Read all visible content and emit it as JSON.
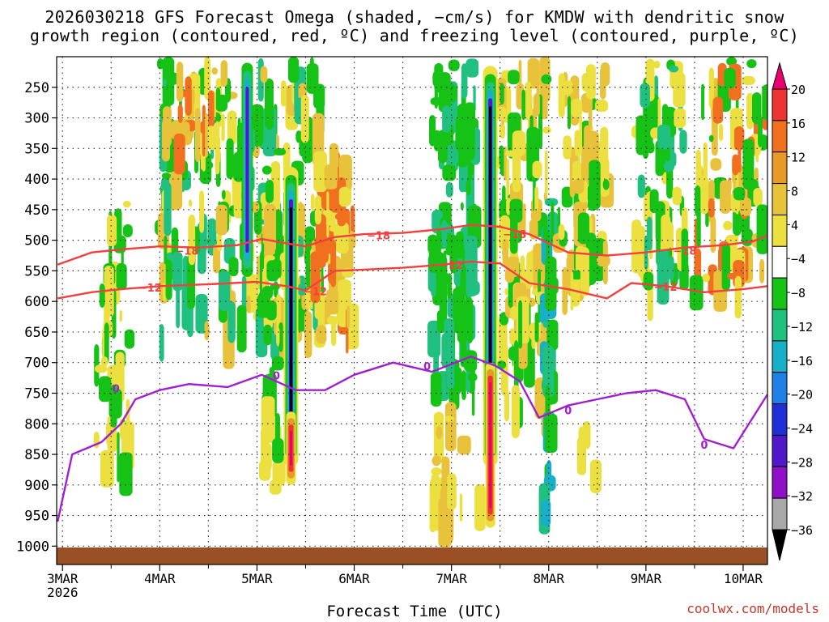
{
  "title_line1": "2026030218 GFS Forecast Omega (shaded, −cm/s) for KMDW with dendritic snow",
  "title_line2": "growth region (contoured, red, ºC) and freezing level (contoured, purple, ºC)",
  "credit": "coolwx.com/models",
  "chart_data": {
    "type": "heatmap",
    "xlabel": "Forecast Time (UTC)",
    "ylabel": "",
    "x_ticks": [
      {
        "day": 3,
        "label": "3MAR",
        "sub": "2026"
      },
      {
        "day": 4,
        "label": "4MAR"
      },
      {
        "day": 5,
        "label": "5MAR"
      },
      {
        "day": 6,
        "label": "6MAR"
      },
      {
        "day": 7,
        "label": "7MAR"
      },
      {
        "day": 8,
        "label": "8MAR"
      },
      {
        "day": 9,
        "label": "9MAR"
      },
      {
        "day": 10,
        "label": "10MAR"
      }
    ],
    "xlim": [
      2.94,
      10.25
    ],
    "y_ticks": [
      250,
      300,
      350,
      400,
      450,
      500,
      550,
      600,
      650,
      700,
      750,
      800,
      850,
      900,
      950,
      1000
    ],
    "ylim_hPa": [
      200,
      1030
    ],
    "grid": true,
    "colorbar": {
      "labels": [
        "20",
        "16",
        "12",
        "8",
        "4",
        "−4",
        "−8",
        "−12",
        "−16",
        "−20",
        "−24",
        "−28",
        "−32",
        "−36"
      ],
      "colors": [
        "#e8006e",
        "#ee3333",
        "#f07020",
        "#e89a28",
        "#e8c23a",
        "#ece040",
        "#ffffff",
        "#17c217",
        "#20c080",
        "#18b0c8",
        "#2080e8",
        "#2030d8",
        "#5018c8",
        "#9010c8",
        "#a8a8a8",
        "#000000"
      ]
    },
    "contours": [
      {
        "name": "dendritic-upper",
        "label": "−18",
        "color": "#f04040",
        "x": [
          2.95,
          3.3,
          3.6,
          4.0,
          4.4,
          4.8,
          5.05,
          5.3,
          5.5,
          5.8,
          6.1,
          6.5,
          6.9,
          7.2,
          7.5,
          7.8,
          8.2,
          8.6,
          9.0,
          9.4,
          9.8,
          10.1,
          10.25
        ],
        "p": [
          540,
          520,
          515,
          510,
          512,
          508,
          498,
          505,
          510,
          495,
          490,
          488,
          482,
          475,
          478,
          490,
          520,
          525,
          520,
          512,
          508,
          502,
          492
        ],
        "label_at": [
          [
            4.28,
            517
          ],
          [
            6.25,
            492
          ],
          [
            7.65,
            490
          ],
          [
            9.4,
            517
          ]
        ]
      },
      {
        "name": "dendritic-lower",
        "label": "−12",
        "color": "#f04040",
        "x": [
          2.95,
          3.3,
          3.6,
          4.0,
          4.5,
          5.0,
          5.3,
          5.5,
          5.8,
          6.1,
          6.5,
          6.9,
          7.2,
          7.5,
          7.8,
          8.2,
          8.6,
          8.85,
          9.2,
          9.6,
          10.0,
          10.25
        ],
        "p": [
          595,
          585,
          580,
          575,
          572,
          568,
          575,
          582,
          550,
          548,
          545,
          540,
          535,
          538,
          570,
          580,
          595,
          570,
          575,
          585,
          580,
          575
        ],
        "label_at": [
          [
            3.9,
            577
          ],
          [
            5.6,
            583
          ],
          [
            7.0,
            540
          ],
          [
            9.2,
            576
          ]
        ]
      },
      {
        "name": "freezing-level",
        "label": "0",
        "color": "#a020d0",
        "x": [
          2.95,
          3.1,
          3.4,
          3.6,
          3.75,
          4.0,
          4.3,
          4.7,
          5.05,
          5.4,
          5.7,
          6.0,
          6.4,
          6.8,
          7.2,
          7.45,
          7.7,
          7.9,
          8.2,
          8.5,
          8.8,
          9.1,
          9.4,
          9.6,
          9.9,
          10.25
        ],
        "p": [
          960,
          850,
          830,
          800,
          760,
          745,
          735,
          740,
          720,
          745,
          745,
          720,
          700,
          715,
          690,
          705,
          730,
          790,
          770,
          760,
          750,
          745,
          760,
          825,
          840,
          752
        ],
        "label_at": [
          [
            3.55,
            742
          ],
          [
            5.2,
            721
          ],
          [
            6.75,
            706
          ],
          [
            8.2,
            778
          ],
          [
            9.6,
            834
          ]
        ]
      }
    ],
    "omega_features": [
      {
        "type": "updraft",
        "day": 5.35,
        "p_top": 380,
        "p_bottom": 870,
        "min": -36
      },
      {
        "type": "updraft",
        "day": 4.9,
        "p_top": 210,
        "p_bottom": 560,
        "min": -28
      },
      {
        "type": "updraft",
        "day": 7.4,
        "p_top": 215,
        "p_bottom": 870,
        "min": -36
      },
      {
        "type": "subsidence",
        "day": 5.35,
        "p_top": 780,
        "p_bottom": 900,
        "max": 16
      },
      {
        "type": "subsidence",
        "day": 7.4,
        "p_top": 700,
        "p_bottom": 970,
        "max": 20
      }
    ]
  }
}
